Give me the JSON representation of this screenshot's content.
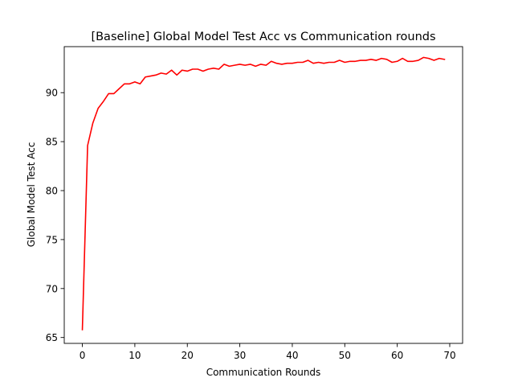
{
  "chart_data": {
    "type": "line",
    "title": "[Baseline] Global Model Test Acc vs Communication rounds",
    "xlabel": "Communication Rounds",
    "ylabel": "Global Model Test Acc",
    "xlim": [
      -3.45,
      72.45
    ],
    "ylim": [
      64.4,
      94.7
    ],
    "xticks": [
      0,
      10,
      20,
      30,
      40,
      50,
      60,
      70
    ],
    "yticks": [
      65,
      70,
      75,
      80,
      85,
      90
    ],
    "grid": false,
    "line_color": "#ff0000",
    "series": [
      {
        "x": [
          0,
          1,
          2,
          3,
          4,
          5,
          6,
          7,
          8,
          9,
          10,
          11,
          12,
          13,
          14,
          15,
          16,
          17,
          18,
          19,
          20,
          21,
          22,
          23,
          24,
          25,
          26,
          27,
          28,
          29,
          30,
          31,
          32,
          33,
          34,
          35,
          36,
          37,
          38,
          39,
          40,
          41,
          42,
          43,
          44,
          45,
          46,
          47,
          48,
          49,
          50,
          51,
          52,
          53,
          54,
          55,
          56,
          57,
          58,
          59,
          60,
          61,
          62,
          63,
          64,
          65,
          66,
          67,
          68,
          69
        ],
        "values": [
          65.8,
          84.6,
          86.9,
          88.4,
          89.1,
          89.9,
          89.9,
          90.4,
          90.9,
          90.9,
          91.1,
          90.9,
          91.6,
          91.7,
          91.8,
          92.0,
          91.9,
          92.3,
          91.8,
          92.3,
          92.2,
          92.4,
          92.4,
          92.2,
          92.4,
          92.5,
          92.4,
          92.9,
          92.7,
          92.8,
          92.9,
          92.8,
          92.9,
          92.7,
          92.9,
          92.8,
          93.2,
          93.0,
          92.9,
          93.0,
          93.0,
          93.1,
          93.1,
          93.3,
          93.0,
          93.1,
          93.0,
          93.1,
          93.1,
          93.3,
          93.1,
          93.2,
          93.2,
          93.3,
          93.3,
          93.4,
          93.3,
          93.5,
          93.4,
          93.1,
          93.2,
          93.5,
          93.2,
          93.2,
          93.3,
          93.6,
          93.5,
          93.3,
          93.5,
          93.4
        ]
      }
    ]
  }
}
